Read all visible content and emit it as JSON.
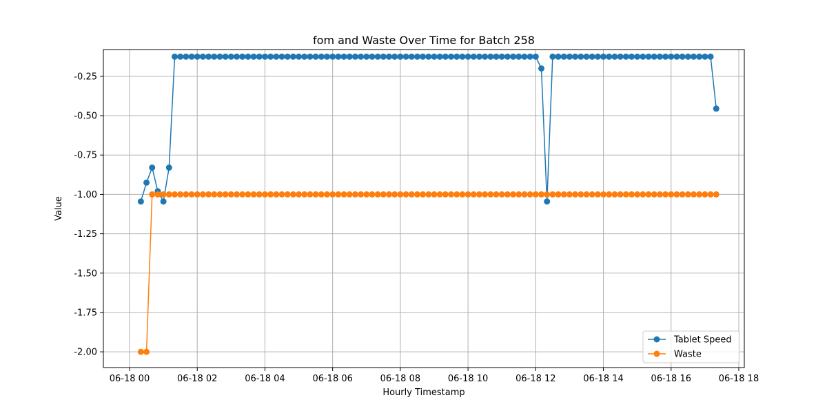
{
  "chart_data": {
    "type": "line",
    "title": "fom and Waste Over Time for Batch 258",
    "xlabel": "Hourly Timestamp",
    "ylabel": "Value",
    "x_ticks": [
      "06-18 00",
      "06-18 02",
      "06-18 04",
      "06-18 06",
      "06-18 08",
      "06-18 10",
      "06-18 12",
      "06-18 14",
      "06-18 16",
      "06-18 18"
    ],
    "y_ticks": [
      "-0.25",
      "-0.50",
      "-0.75",
      "-1.00",
      "-1.25",
      "-1.50",
      "-1.75",
      "-2.00"
    ],
    "xlim": [
      "06-18 00",
      "06-18 18"
    ],
    "ylim": [
      -2.1,
      -0.08
    ],
    "grid": true,
    "legend_position": "lower-right",
    "x": [
      "06-18 00:20",
      "06-18 00:30",
      "06-18 00:40",
      "06-18 00:50",
      "06-18 01:00",
      "06-18 01:10",
      "06-18 01:20",
      "06-18 01:30",
      "06-18 01:40",
      "06-18 01:50",
      "06-18 02:00",
      "06-18 02:10",
      "06-18 02:20",
      "06-18 02:30",
      "06-18 02:40",
      "06-18 02:50",
      "06-18 03:00",
      "06-18 03:10",
      "06-18 03:20",
      "06-18 03:30",
      "06-18 03:40",
      "06-18 03:50",
      "06-18 04:00",
      "06-18 04:10",
      "06-18 04:20",
      "06-18 04:30",
      "06-18 04:40",
      "06-18 04:50",
      "06-18 05:00",
      "06-18 05:10",
      "06-18 05:20",
      "06-18 05:30",
      "06-18 05:40",
      "06-18 05:50",
      "06-18 06:00",
      "06-18 06:10",
      "06-18 06:20",
      "06-18 06:30",
      "06-18 06:40",
      "06-18 06:50",
      "06-18 07:00",
      "06-18 07:10",
      "06-18 07:20",
      "06-18 07:30",
      "06-18 07:40",
      "06-18 07:50",
      "06-18 08:00",
      "06-18 08:10",
      "06-18 08:20",
      "06-18 08:30",
      "06-18 08:40",
      "06-18 08:50",
      "06-18 09:00",
      "06-18 09:10",
      "06-18 09:20",
      "06-18 09:30",
      "06-18 09:40",
      "06-18 09:50",
      "06-18 10:00",
      "06-18 10:10",
      "06-18 10:20",
      "06-18 10:30",
      "06-18 10:40",
      "06-18 10:50",
      "06-18 11:00",
      "06-18 11:10",
      "06-18 11:20",
      "06-18 11:30",
      "06-18 11:40",
      "06-18 11:50",
      "06-18 12:00",
      "06-18 12:10",
      "06-18 12:20",
      "06-18 12:30",
      "06-18 12:40",
      "06-18 12:50",
      "06-18 13:00",
      "06-18 13:10",
      "06-18 13:20",
      "06-18 13:30",
      "06-18 13:40",
      "06-18 13:50",
      "06-18 14:00",
      "06-18 14:10",
      "06-18 14:20",
      "06-18 14:30",
      "06-18 14:40",
      "06-18 14:50",
      "06-18 15:00",
      "06-18 15:10",
      "06-18 15:20",
      "06-18 15:30",
      "06-18 15:40",
      "06-18 15:50",
      "06-18 16:00",
      "06-18 16:10",
      "06-18 16:20",
      "06-18 16:30",
      "06-18 16:40",
      "06-18 16:50",
      "06-18 17:00",
      "06-18 17:10",
      "06-18 17:20"
    ],
    "series": [
      {
        "name": "Tablet Speed",
        "color": "#1f77b4",
        "values": [
          -1.045,
          -0.925,
          -0.83,
          -0.98,
          -1.045,
          -0.83,
          -0.125,
          -0.125,
          -0.125,
          -0.125,
          -0.125,
          -0.125,
          -0.125,
          -0.125,
          -0.125,
          -0.125,
          -0.125,
          -0.125,
          -0.125,
          -0.125,
          -0.125,
          -0.125,
          -0.125,
          -0.125,
          -0.125,
          -0.125,
          -0.125,
          -0.125,
          -0.125,
          -0.125,
          -0.125,
          -0.125,
          -0.125,
          -0.125,
          -0.125,
          -0.125,
          -0.125,
          -0.125,
          -0.125,
          -0.125,
          -0.125,
          -0.125,
          -0.125,
          -0.125,
          -0.125,
          -0.125,
          -0.125,
          -0.125,
          -0.125,
          -0.125,
          -0.125,
          -0.125,
          -0.125,
          -0.125,
          -0.125,
          -0.125,
          -0.125,
          -0.125,
          -0.125,
          -0.125,
          -0.125,
          -0.125,
          -0.125,
          -0.125,
          -0.125,
          -0.125,
          -0.125,
          -0.125,
          -0.125,
          -0.125,
          -0.125,
          -0.2,
          -1.045,
          -0.125,
          -0.125,
          -0.125,
          -0.125,
          -0.125,
          -0.125,
          -0.125,
          -0.125,
          -0.125,
          -0.125,
          -0.125,
          -0.125,
          -0.125,
          -0.125,
          -0.125,
          -0.125,
          -0.125,
          -0.125,
          -0.125,
          -0.125,
          -0.125,
          -0.125,
          -0.125,
          -0.125,
          -0.125,
          -0.125,
          -0.125,
          -0.125,
          -0.125,
          -0.455
        ]
      },
      {
        "name": "Waste",
        "color": "#ff7f0e",
        "values": [
          -2.0,
          -2.0,
          -1.0,
          -1.0,
          -1.0,
          -1.0,
          -1.0,
          -1.0,
          -1.0,
          -1.0,
          -1.0,
          -1.0,
          -1.0,
          -1.0,
          -1.0,
          -1.0,
          -1.0,
          -1.0,
          -1.0,
          -1.0,
          -1.0,
          -1.0,
          -1.0,
          -1.0,
          -1.0,
          -1.0,
          -1.0,
          -1.0,
          -1.0,
          -1.0,
          -1.0,
          -1.0,
          -1.0,
          -1.0,
          -1.0,
          -1.0,
          -1.0,
          -1.0,
          -1.0,
          -1.0,
          -1.0,
          -1.0,
          -1.0,
          -1.0,
          -1.0,
          -1.0,
          -1.0,
          -1.0,
          -1.0,
          -1.0,
          -1.0,
          -1.0,
          -1.0,
          -1.0,
          -1.0,
          -1.0,
          -1.0,
          -1.0,
          -1.0,
          -1.0,
          -1.0,
          -1.0,
          -1.0,
          -1.0,
          -1.0,
          -1.0,
          -1.0,
          -1.0,
          -1.0,
          -1.0,
          -1.0,
          -1.0,
          -1.0,
          -1.0,
          -1.0,
          -1.0,
          -1.0,
          -1.0,
          -1.0,
          -1.0,
          -1.0,
          -1.0,
          -1.0,
          -1.0,
          -1.0,
          -1.0,
          -1.0,
          -1.0,
          -1.0,
          -1.0,
          -1.0,
          -1.0,
          -1.0,
          -1.0,
          -1.0,
          -1.0,
          -1.0,
          -1.0,
          -1.0,
          -1.0,
          -1.0,
          -1.0,
          -1.0
        ]
      }
    ]
  }
}
